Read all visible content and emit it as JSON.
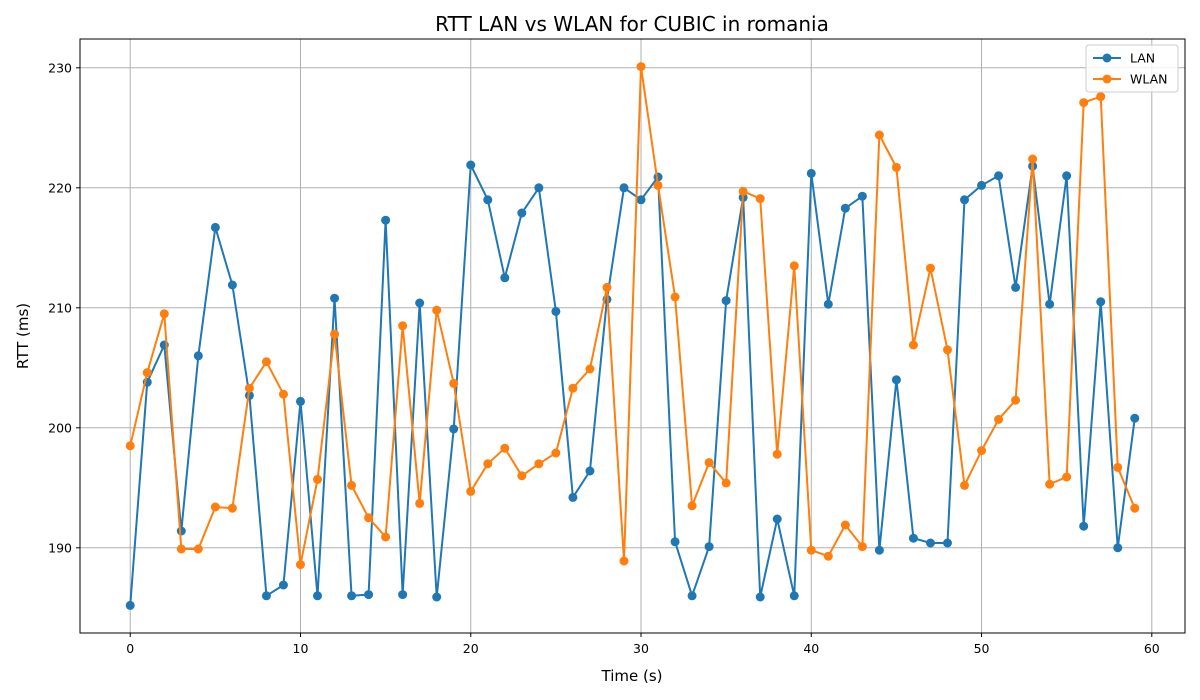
{
  "chart_data": {
    "type": "line",
    "title": "RTT LAN vs WLAN for CUBIC in romania",
    "xlabel": "Time (s)",
    "ylabel": "RTT (ms)",
    "xlim": [
      -2.95,
      61.95
    ],
    "ylim": [
      182.9,
      232.4
    ],
    "xticks": [
      0,
      10,
      20,
      30,
      40,
      50,
      60
    ],
    "yticks": [
      190,
      200,
      210,
      220,
      230
    ],
    "grid": true,
    "legend_position": "top-right",
    "x": [
      0,
      1,
      2,
      3,
      4,
      5,
      6,
      7,
      8,
      9,
      10,
      11,
      12,
      13,
      14,
      15,
      16,
      17,
      18,
      19,
      20,
      21,
      22,
      23,
      24,
      25,
      26,
      27,
      28,
      29,
      30,
      31,
      32,
      33,
      34,
      35,
      36,
      37,
      38,
      39,
      40,
      41,
      42,
      43,
      44,
      45,
      46,
      47,
      48,
      49,
      50,
      51,
      52,
      53,
      54,
      55,
      56,
      57,
      58,
      59
    ],
    "series": [
      {
        "name": "LAN",
        "color": "#1f77b4",
        "values": [
          185.2,
          203.8,
          206.9,
          191.4,
          206.0,
          216.7,
          211.9,
          202.7,
          186.0,
          186.9,
          202.2,
          186.0,
          210.8,
          186.0,
          186.1,
          217.3,
          186.1,
          210.4,
          185.9,
          199.9,
          221.9,
          219.0,
          212.5,
          217.9,
          220.0,
          209.7,
          194.2,
          196.4,
          210.7,
          220.0,
          219.0,
          220.9,
          190.5,
          186.0,
          190.1,
          210.6,
          219.2,
          185.9,
          192.4,
          186.0,
          221.2,
          210.3,
          218.3,
          219.3,
          189.8,
          204.0,
          190.8,
          190.4,
          190.4,
          219.0,
          220.2,
          221.0,
          211.7,
          221.8,
          210.3,
          221.0,
          191.8,
          210.5,
          190.0,
          200.8
        ]
      },
      {
        "name": "WLAN",
        "color": "#ff7f0e",
        "values": [
          198.5,
          204.6,
          209.5,
          189.9,
          189.9,
          193.4,
          193.3,
          203.3,
          205.5,
          202.8,
          188.6,
          195.7,
          207.8,
          195.2,
          192.5,
          190.9,
          208.5,
          193.7,
          209.8,
          203.7,
          194.7,
          197.0,
          198.3,
          196.0,
          197.0,
          197.9,
          203.3,
          204.9,
          211.7,
          188.9,
          230.1,
          220.2,
          210.9,
          193.5,
          197.1,
          195.4,
          219.7,
          219.1,
          197.8,
          213.5,
          189.8,
          189.3,
          191.9,
          190.1,
          224.4,
          221.7,
          206.9,
          213.3,
          206.5,
          195.2,
          198.1,
          200.7,
          202.3,
          222.4,
          195.3,
          195.9,
          227.1,
          227.6,
          196.7,
          193.3
        ]
      }
    ]
  }
}
